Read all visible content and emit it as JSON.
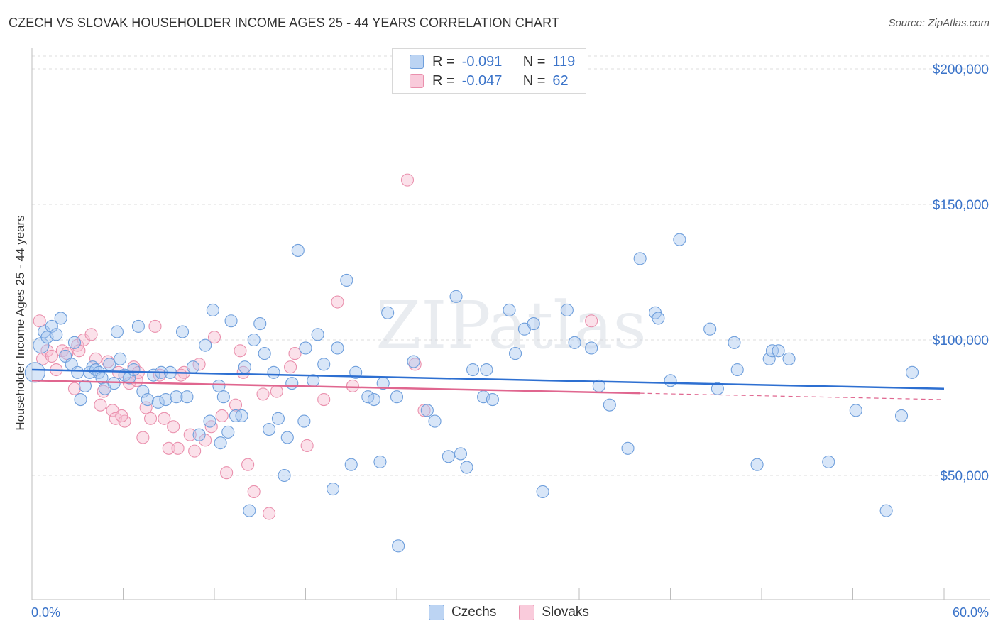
{
  "title": "CZECH VS SLOVAK HOUSEHOLDER INCOME AGES 25 - 44 YEARS CORRELATION CHART",
  "source": "Source: ZipAtlas.com",
  "watermark": "ZIPatlas",
  "legend": {
    "rows": [
      {
        "r_label": "R =",
        "r_value": "-0.091",
        "n_label": "N =",
        "n_value": "119"
      },
      {
        "r_label": "R =",
        "r_value": "-0.047",
        "n_label": "N =",
        "n_value": "62"
      }
    ]
  },
  "bottom_legend": [
    "Czechs",
    "Slovaks"
  ],
  "colors": {
    "czech_fill": "#a9c8f0",
    "czech_stroke": "#6f9fdc",
    "czech_line": "#2d6fd1",
    "slovak_fill": "#f7bcd0",
    "slovak_stroke": "#ea90ad",
    "slovak_line": "#e0668f",
    "axis_text": "#3a73c9",
    "grid": "#dddddd"
  },
  "chart_data": {
    "type": "scatter",
    "title": "CZECH VS SLOVAK HOUSEHOLDER INCOME AGES 25 - 44 YEARS CORRELATION CHART",
    "xlabel": "",
    "ylabel": "Householder Income Ages 25 - 44 years",
    "xlim": [
      0,
      60
    ],
    "ylim": [
      0,
      210000
    ],
    "x_tick_labels": [
      "0.0%",
      "60.0%"
    ],
    "y_ticks": [
      50000,
      100000,
      150000,
      200000
    ],
    "y_tick_labels": [
      "$50,000",
      "$100,000",
      "$150,000",
      "$200,000"
    ],
    "grid": true,
    "legend_position": "top-center",
    "series": [
      {
        "name": "Czechs",
        "R": -0.091,
        "N": 119,
        "trend": {
          "x0": 0,
          "y0": 89000,
          "x1": 60,
          "y1": 82000
        },
        "points": [
          [
            0.2,
            88000
          ],
          [
            0.6,
            98000
          ],
          [
            0.8,
            103000
          ],
          [
            1.0,
            101000
          ],
          [
            1.3,
            105000
          ],
          [
            1.6,
            102000
          ],
          [
            1.9,
            108000
          ],
          [
            2.2,
            94000
          ],
          [
            2.6,
            91000
          ],
          [
            2.8,
            99000
          ],
          [
            3.0,
            88000
          ],
          [
            3.2,
            78000
          ],
          [
            3.5,
            83000
          ],
          [
            3.8,
            88000
          ],
          [
            4.0,
            90000
          ],
          [
            4.2,
            89000
          ],
          [
            4.4,
            88000
          ],
          [
            4.6,
            86000
          ],
          [
            4.8,
            82000
          ],
          [
            5.1,
            91000
          ],
          [
            5.4,
            84000
          ],
          [
            5.6,
            103000
          ],
          [
            5.8,
            93000
          ],
          [
            6.1,
            87000
          ],
          [
            6.4,
            86000
          ],
          [
            6.7,
            89000
          ],
          [
            7.0,
            105000
          ],
          [
            7.3,
            81000
          ],
          [
            7.6,
            78000
          ],
          [
            8.0,
            87000
          ],
          [
            8.3,
            77000
          ],
          [
            8.5,
            88000
          ],
          [
            8.8,
            78000
          ],
          [
            9.1,
            88000
          ],
          [
            9.5,
            79000
          ],
          [
            9.9,
            103000
          ],
          [
            10.2,
            79000
          ],
          [
            10.6,
            90000
          ],
          [
            11.0,
            65000
          ],
          [
            11.4,
            98000
          ],
          [
            11.7,
            70000
          ],
          [
            11.9,
            111000
          ],
          [
            12.3,
            83000
          ],
          [
            12.6,
            79000
          ],
          [
            12.9,
            66000
          ],
          [
            13.1,
            107000
          ],
          [
            13.4,
            72000
          ],
          [
            13.8,
            72000
          ],
          [
            14.0,
            90000
          ],
          [
            14.3,
            37000
          ],
          [
            14.6,
            100000
          ],
          [
            15.0,
            106000
          ],
          [
            15.3,
            95000
          ],
          [
            15.6,
            67000
          ],
          [
            15.9,
            88000
          ],
          [
            16.2,
            71000
          ],
          [
            16.6,
            50000
          ],
          [
            16.8,
            64000
          ],
          [
            17.1,
            84000
          ],
          [
            17.5,
            133000
          ],
          [
            17.9,
            70000
          ],
          [
            18.0,
            97000
          ],
          [
            18.5,
            85000
          ],
          [
            18.8,
            102000
          ],
          [
            19.2,
            91000
          ],
          [
            19.8,
            45000
          ],
          [
            20.1,
            97000
          ],
          [
            20.7,
            122000
          ],
          [
            21.0,
            54000
          ],
          [
            21.3,
            88000
          ],
          [
            22.1,
            79000
          ],
          [
            22.9,
            55000
          ],
          [
            23.1,
            84000
          ],
          [
            23.4,
            110000
          ],
          [
            24.0,
            79000
          ],
          [
            24.1,
            24000
          ],
          [
            25.1,
            92000
          ],
          [
            26.0,
            74000
          ],
          [
            26.5,
            70000
          ],
          [
            27.4,
            57000
          ],
          [
            27.9,
            116000
          ],
          [
            28.2,
            58000
          ],
          [
            28.6,
            53000
          ],
          [
            29.0,
            89000
          ],
          [
            29.7,
            79000
          ],
          [
            29.9,
            89000
          ],
          [
            30.3,
            78000
          ],
          [
            31.4,
            111000
          ],
          [
            31.8,
            95000
          ],
          [
            32.4,
            104000
          ],
          [
            33.0,
            106000
          ],
          [
            33.6,
            44000
          ],
          [
            35.2,
            111000
          ],
          [
            35.7,
            99000
          ],
          [
            36.8,
            97000
          ],
          [
            37.3,
            83000
          ],
          [
            39.2,
            60000
          ],
          [
            40.0,
            130000
          ],
          [
            41.0,
            110000
          ],
          [
            41.2,
            108000
          ],
          [
            42.0,
            85000
          ],
          [
            42.6,
            137000
          ],
          [
            44.6,
            104000
          ],
          [
            45.1,
            82000
          ],
          [
            46.2,
            99000
          ],
          [
            46.4,
            89000
          ],
          [
            47.7,
            54000
          ],
          [
            48.5,
            93000
          ],
          [
            48.7,
            96000
          ],
          [
            49.1,
            96000
          ],
          [
            49.8,
            93000
          ],
          [
            52.4,
            55000
          ],
          [
            54.2,
            74000
          ],
          [
            56.2,
            37000
          ],
          [
            57.2,
            72000
          ],
          [
            57.9,
            88000
          ],
          [
            12.4,
            62000
          ],
          [
            22.5,
            78000
          ],
          [
            38.0,
            76000
          ]
        ]
      },
      {
        "name": "Slovaks",
        "R": -0.047,
        "N": 62,
        "trend": {
          "x0": 0,
          "y0": 85000,
          "x1": 60,
          "y1": 78000
        },
        "points": [
          [
            0.5,
            107000
          ],
          [
            0.7,
            93000
          ],
          [
            1.0,
            96000
          ],
          [
            1.3,
            94000
          ],
          [
            1.6,
            89000
          ],
          [
            2.0,
            96000
          ],
          [
            2.3,
            95000
          ],
          [
            2.8,
            82000
          ],
          [
            3.0,
            98000
          ],
          [
            3.1,
            96000
          ],
          [
            3.4,
            100000
          ],
          [
            3.9,
            102000
          ],
          [
            4.2,
            93000
          ],
          [
            4.5,
            76000
          ],
          [
            4.7,
            81000
          ],
          [
            5.0,
            92000
          ],
          [
            5.3,
            74000
          ],
          [
            5.5,
            71000
          ],
          [
            5.7,
            88000
          ],
          [
            6.1,
            70000
          ],
          [
            6.4,
            84000
          ],
          [
            6.7,
            90000
          ],
          [
            6.9,
            85000
          ],
          [
            7.3,
            64000
          ],
          [
            7.5,
            75000
          ],
          [
            7.8,
            71000
          ],
          [
            8.1,
            105000
          ],
          [
            8.4,
            87000
          ],
          [
            8.7,
            71000
          ],
          [
            9.0,
            60000
          ],
          [
            9.3,
            68000
          ],
          [
            9.6,
            60000
          ],
          [
            10.0,
            88000
          ],
          [
            10.4,
            65000
          ],
          [
            10.7,
            59000
          ],
          [
            11.0,
            91000
          ],
          [
            11.4,
            63000
          ],
          [
            11.8,
            68000
          ],
          [
            12.0,
            101000
          ],
          [
            12.8,
            51000
          ],
          [
            13.4,
            76000
          ],
          [
            13.7,
            96000
          ],
          [
            14.2,
            54000
          ],
          [
            14.6,
            44000
          ],
          [
            15.2,
            80000
          ],
          [
            15.6,
            36000
          ],
          [
            16.1,
            81000
          ],
          [
            17.0,
            90000
          ],
          [
            17.3,
            95000
          ],
          [
            18.1,
            61000
          ],
          [
            19.2,
            78000
          ],
          [
            20.1,
            114000
          ],
          [
            21.1,
            83000
          ],
          [
            24.7,
            159000
          ],
          [
            25.2,
            91000
          ],
          [
            25.8,
            74000
          ],
          [
            36.8,
            107000
          ],
          [
            13.9,
            88000
          ],
          [
            7.0,
            88000
          ],
          [
            5.9,
            72000
          ],
          [
            12.5,
            72000
          ],
          [
            9.8,
            87000
          ]
        ]
      }
    ]
  }
}
